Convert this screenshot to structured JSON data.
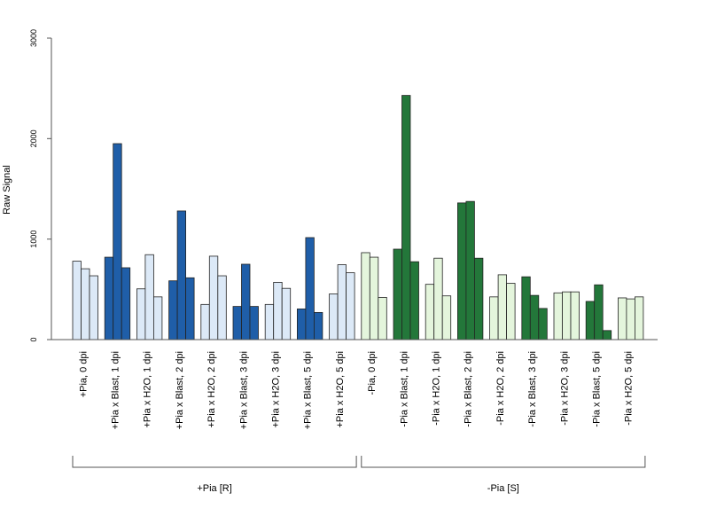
{
  "chart_data": {
    "type": "bar",
    "ylabel": "Raw Signal",
    "ylim": [
      0,
      3000
    ],
    "yticks": [
      "0",
      "1000",
      "2000",
      "3000"
    ],
    "grid": false,
    "bars_per_category": 3,
    "categories": [
      "+Pia, 0 dpi",
      "+Pia x Blast, 1 dpi",
      "+Pia x H2O, 1 dpi",
      "+Pia x Blast, 2 dpi",
      "+Pia x H2O, 2 dpi",
      "+Pia x Blast, 3 dpi",
      "+Pia x H2O, 3 dpi",
      "+Pia x Blast, 5 dpi",
      "+Pia x H2O, 5 dpi",
      "-Pia, 0 dpi",
      "-Pia x Blast, 1 dpi",
      "-Pia x H2O, 1 dpi",
      "-Pia x Blast, 2 dpi",
      "-Pia x H2O, 2 dpi",
      "-Pia x Blast, 3 dpi",
      "-Pia x H2O, 3 dpi",
      "-Pia x Blast, 5 dpi",
      "-Pia x H2O, 5 dpi"
    ],
    "values": [
      [
        780,
        705,
        635
      ],
      [
        820,
        1950,
        715
      ],
      [
        505,
        845,
        425
      ],
      [
        585,
        1280,
        615
      ],
      [
        350,
        830,
        635
      ],
      [
        330,
        750,
        330
      ],
      [
        350,
        570,
        510
      ],
      [
        305,
        1015,
        270
      ],
      [
        455,
        745,
        665
      ],
      [
        865,
        820,
        420
      ],
      [
        900,
        2430,
        775
      ],
      [
        550,
        810,
        435
      ],
      [
        1360,
        1375,
        810
      ],
      [
        425,
        645,
        560
      ],
      [
        625,
        440,
        310
      ],
      [
        465,
        475,
        475
      ],
      [
        380,
        545,
        90
      ],
      [
        415,
        405,
        425
      ]
    ],
    "bar_colors": [
      "#dce9f7",
      "#1f5ea8",
      "#dce9f7",
      "#1f5ea8",
      "#dce9f7",
      "#1f5ea8",
      "#dce9f7",
      "#1f5ea8",
      "#dce9f7",
      "#e4f5dc",
      "#23773a",
      "#e4f5dc",
      "#23773a",
      "#e4f5dc",
      "#23773a",
      "#e4f5dc",
      "#23773a",
      "#e4f5dc"
    ],
    "groups": [
      {
        "label": "+Pia [R]",
        "from": 0,
        "to": 8
      },
      {
        "label": "-Pia [S]",
        "from": 9,
        "to": 17
      }
    ]
  }
}
